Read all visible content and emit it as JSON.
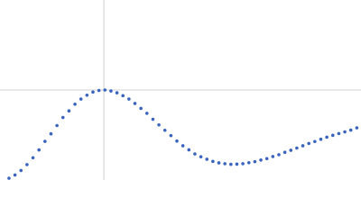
{
  "chart_data": {
    "type": "scatter",
    "color": "#3a64bd",
    "grid": true,
    "xlim": [
      0,
      6.02
    ],
    "ylim": [
      0,
      2.208
    ],
    "xticks": [
      1.732
    ],
    "yticks": [
      1.104
    ],
    "series": [
      {
        "x": [
          0.15,
          0.25,
          0.35,
          0.45,
          0.55,
          0.65,
          0.75,
          0.85,
          0.95,
          1.05,
          1.15,
          1.25,
          1.35,
          1.45,
          1.55,
          1.65,
          1.75,
          1.85,
          1.95,
          2.05,
          2.15,
          2.25,
          2.35,
          2.45,
          2.55,
          2.65,
          2.75,
          2.85,
          2.95,
          3.05,
          3.15,
          3.25,
          3.35,
          3.45,
          3.55,
          3.65,
          3.75,
          3.85,
          3.95,
          4.05,
          4.15,
          4.25,
          4.35,
          4.45,
          4.55,
          4.65,
          4.75,
          4.85,
          4.95,
          5.05,
          5.15,
          5.25,
          5.35,
          5.45,
          5.55,
          5.65,
          5.75,
          5.85,
          5.95
        ],
        "values": [
          0.022,
          0.061,
          0.117,
          0.189,
          0.273,
          0.369,
          0.474,
          0.566,
          0.668,
          0.767,
          0.848,
          0.93,
          0.993,
          1.04,
          1.079,
          1.098,
          1.104,
          1.092,
          1.07,
          1.034,
          0.993,
          0.939,
          0.878,
          0.818,
          0.745,
          0.676,
          0.61,
          0.545,
          0.478,
          0.42,
          0.37,
          0.32,
          0.285,
          0.255,
          0.228,
          0.21,
          0.2,
          0.192,
          0.195,
          0.2,
          0.212,
          0.225,
          0.245,
          0.262,
          0.288,
          0.31,
          0.34,
          0.365,
          0.392,
          0.42,
          0.448,
          0.472,
          0.5,
          0.525,
          0.548,
          0.57,
          0.59,
          0.612,
          0.64
        ]
      }
    ]
  }
}
